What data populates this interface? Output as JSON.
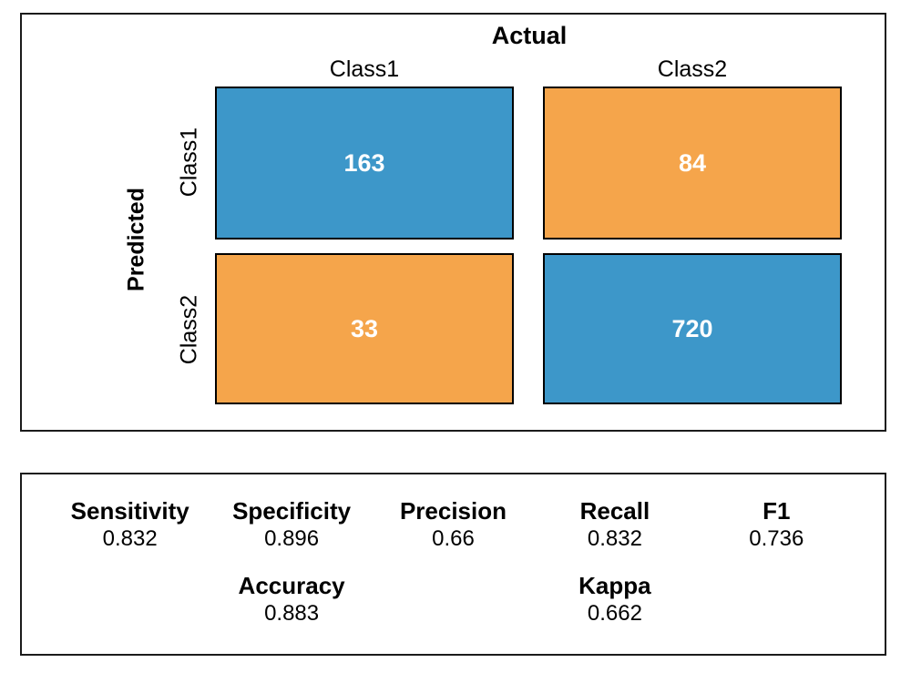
{
  "chart_data": [
    {
      "type": "heatmap",
      "subtype": "confusion-matrix",
      "x_axis_title": "Actual",
      "y_axis_title": "Predicted",
      "x_categories": [
        "Class1",
        "Class2"
      ],
      "y_categories": [
        "Class1",
        "Class2"
      ],
      "matrix": [
        [
          163,
          84
        ],
        [
          33,
          720
        ]
      ],
      "matrix_labels": [
        "163",
        "84",
        "33",
        "720"
      ],
      "colors": {
        "matrix": [
          [
            "#3d97c9",
            "#f5a54b"
          ],
          [
            "#f5a54b",
            "#3d97c9"
          ]
        ],
        "correct_cell": "#3d97c9",
        "incorrect_cell": "#f5a54b",
        "cell_text": "#ffffff",
        "border": "#000000"
      },
      "legend": "none",
      "grid": false
    },
    {
      "type": "table",
      "rows": [
        [
          {
            "label": "Sensitivity",
            "value": "0.832"
          },
          {
            "label": "Specificity",
            "value": "0.896"
          },
          {
            "label": "Precision",
            "value": "0.66"
          },
          {
            "label": "Recall",
            "value": "0.832"
          },
          {
            "label": "F1",
            "value": "0.736"
          }
        ],
        [
          {
            "label": "Accuracy",
            "value": "0.883"
          },
          {
            "label": "Kappa",
            "value": "0.662"
          }
        ]
      ]
    }
  ]
}
